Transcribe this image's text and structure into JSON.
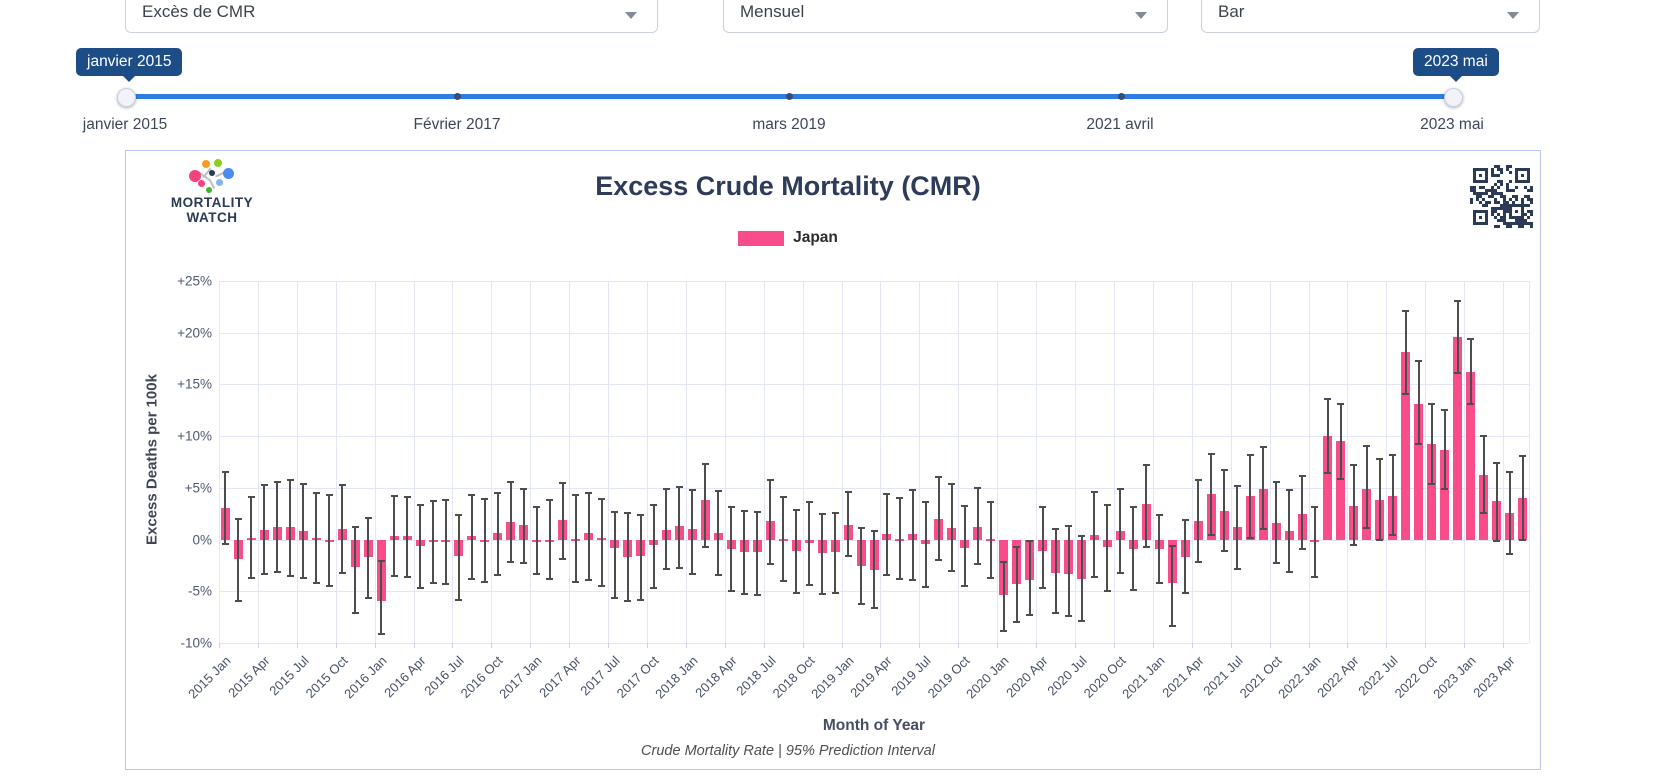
{
  "controls": {
    "metric": "Excès de CMR",
    "frequency": "Mensuel",
    "chart_type": "Bar"
  },
  "slider": {
    "start_badge": "janvier 2015",
    "end_badge": "2023 mai",
    "tick_labels": [
      "janvier 2015",
      "Février 2017",
      "mars 2019",
      "2021 avril",
      "2023 mai"
    ]
  },
  "brand": {
    "line1": "MORTALITY",
    "line2": "WATCH"
  },
  "colors": {
    "bar_pink": "#f84d8a",
    "badge_navy": "#1d4d86",
    "track_blue": "#2e7de2",
    "qr_navy": "#2b3a55"
  },
  "chart_data": {
    "type": "bar",
    "title": "Excess Crude Mortality (CMR)",
    "ylabel": "Excess Deaths per 100k",
    "xlabel": "Month of Year",
    "subtitle": "Crude Mortality Rate | 95% Prediction Interval",
    "legend": [
      {
        "label": "Japan",
        "color": "#f84d8a"
      }
    ],
    "ylim": [
      -10,
      25
    ],
    "ytick_step": 5,
    "ytick_labels": [
      "+25%",
      "+20%",
      "+15%",
      "+10%",
      "+5%",
      "0%",
      "-5%",
      "-10%"
    ],
    "grid": true,
    "xtick_every": 3,
    "x": [
      "2015 Jan",
      "2015 Feb",
      "2015 Mar",
      "2015 Apr",
      "2015 May",
      "2015 Jun",
      "2015 Jul",
      "2015 Aug",
      "2015 Sep",
      "2015 Oct",
      "2015 Nov",
      "2015 Dec",
      "2016 Jan",
      "2016 Feb",
      "2016 Mar",
      "2016 Apr",
      "2016 May",
      "2016 Jun",
      "2016 Jul",
      "2016 Aug",
      "2016 Sep",
      "2016 Oct",
      "2016 Nov",
      "2016 Dec",
      "2017 Jan",
      "2017 Feb",
      "2017 Mar",
      "2017 Apr",
      "2017 May",
      "2017 Jun",
      "2017 Jul",
      "2017 Aug",
      "2017 Sep",
      "2017 Oct",
      "2017 Nov",
      "2017 Dec",
      "2018 Jan",
      "2018 Feb",
      "2018 Mar",
      "2018 Apr",
      "2018 May",
      "2018 Jun",
      "2018 Jul",
      "2018 Aug",
      "2018 Sep",
      "2018 Oct",
      "2018 Nov",
      "2018 Dec",
      "2019 Jan",
      "2019 Feb",
      "2019 Mar",
      "2019 Apr",
      "2019 May",
      "2019 Jun",
      "2019 Jul",
      "2019 Aug",
      "2019 Sep",
      "2019 Oct",
      "2019 Nov",
      "2019 Dec",
      "2020 Jan",
      "2020 Feb",
      "2020 Mar",
      "2020 Apr",
      "2020 May",
      "2020 Jun",
      "2020 Jul",
      "2020 Aug",
      "2020 Sep",
      "2020 Oct",
      "2020 Nov",
      "2020 Dec",
      "2021 Jan",
      "2021 Feb",
      "2021 Mar",
      "2021 Apr",
      "2021 May",
      "2021 Jun",
      "2021 Jul",
      "2021 Aug",
      "2021 Sep",
      "2021 Oct",
      "2021 Nov",
      "2021 Dec",
      "2022 Jan",
      "2022 Feb",
      "2022 Mar",
      "2022 Apr",
      "2022 May",
      "2022 Jun",
      "2022 Jul",
      "2022 Aug",
      "2022 Sep",
      "2022 Oct",
      "2022 Nov",
      "2022 Dec",
      "2023 Jan",
      "2023 Feb",
      "2023 Mar",
      "2023 Apr",
      "2023 May"
    ],
    "series": [
      {
        "name": "Japan",
        "values": [
          3.1,
          -1.9,
          0.15,
          0.95,
          1.25,
          1.2,
          0.8,
          0.2,
          -0.1,
          1.0,
          -2.7,
          -1.7,
          -5.9,
          0.3,
          0.3,
          -0.6,
          -0.2,
          -0.1,
          -1.6,
          0.3,
          -0.05,
          0.6,
          1.7,
          1.4,
          0.0,
          -0.1,
          1.9,
          0.1,
          0.6,
          0.15,
          -0.85,
          -1.65,
          -1.6,
          -0.5,
          0.95,
          1.35,
          1.0,
          3.85,
          0.65,
          -0.9,
          -1.2,
          -1.2,
          1.75,
          0.1,
          -1.1,
          -0.35,
          -1.3,
          -1.2,
          1.4,
          -2.6,
          -2.9,
          0.5,
          0.05,
          0.5,
          -0.45,
          2.0,
          1.15,
          -0.8,
          1.25,
          0.1,
          -5.4,
          -4.3,
          -3.9,
          -1.1,
          -3.2,
          -3.35,
          -3.8,
          0.45,
          -0.75,
          0.85,
          -0.9,
          3.4,
          -0.9,
          -4.2,
          -1.7,
          1.8,
          4.4,
          2.8,
          1.2,
          4.2,
          4.9,
          1.65,
          0.85,
          2.5,
          -0.05,
          10.0,
          9.5,
          3.25,
          4.9,
          3.85,
          4.2,
          18.1,
          13.15,
          9.2,
          8.7,
          19.6,
          16.25,
          6.2,
          3.75,
          2.55,
          4.05
        ],
        "pi_low": [
          -0.5,
          -6.0,
          -3.8,
          -3.45,
          -3.25,
          -3.65,
          -3.8,
          -4.3,
          -4.6,
          -3.3,
          -7.2,
          -5.7,
          -9.2,
          -3.6,
          -3.7,
          -4.8,
          -4.3,
          -4.4,
          -5.9,
          -3.9,
          -4.2,
          -3.5,
          -2.3,
          -2.4,
          -3.4,
          -3.9,
          -2.0,
          -4.2,
          -4.0,
          -4.6,
          -5.7,
          -6.0,
          -5.9,
          -4.75,
          -2.9,
          -2.8,
          -3.4,
          -0.8,
          -3.5,
          -5.1,
          -5.4,
          -5.5,
          -2.5,
          -4.1,
          -5.3,
          -4.5,
          -5.4,
          -5.3,
          -1.7,
          -6.3,
          -6.7,
          -3.5,
          -3.9,
          -4.0,
          -4.65,
          -2.05,
          -3.1,
          -4.55,
          -2.5,
          -3.8,
          -8.9,
          -8.1,
          -7.4,
          -4.8,
          -7.2,
          -7.5,
          -8.0,
          -3.7,
          -5.1,
          -3.3,
          -5.0,
          -0.8,
          -4.3,
          -8.5,
          -5.3,
          -2.3,
          0.3,
          -1.2,
          -2.9,
          0.1,
          0.9,
          -2.4,
          -3.2,
          -1.0,
          -3.7,
          6.3,
          5.8,
          -0.6,
          1.0,
          -0.1,
          0.3,
          14.0,
          9.1,
          5.3,
          4.8,
          16.0,
          13.0,
          2.5,
          -0.2,
          -1.5,
          -0.1
        ],
        "pi_high": [
          6.6,
          2.1,
          4.2,
          5.35,
          5.7,
          5.9,
          5.45,
          4.6,
          4.4,
          5.4,
          1.3,
          2.2,
          -2.0,
          4.3,
          4.2,
          3.4,
          3.8,
          3.9,
          2.5,
          4.4,
          4.0,
          4.6,
          5.7,
          5.0,
          3.2,
          3.9,
          5.6,
          4.4,
          4.6,
          4.0,
          2.8,
          2.7,
          2.5,
          3.4,
          5.0,
          5.2,
          4.9,
          7.45,
          4.8,
          3.2,
          2.9,
          2.8,
          5.9,
          4.2,
          3.0,
          3.7,
          2.6,
          2.7,
          4.7,
          1.2,
          0.9,
          4.55,
          4.15,
          4.9,
          3.75,
          6.1,
          5.45,
          3.3,
          5.1,
          3.7,
          -2.1,
          -0.6,
          0.0,
          3.2,
          1.1,
          1.4,
          0.4,
          4.7,
          3.4,
          5.0,
          3.2,
          7.3,
          2.5,
          -0.5,
          2.0,
          5.9,
          8.4,
          6.8,
          5.3,
          8.3,
          9.0,
          5.7,
          4.9,
          6.2,
          3.2,
          13.7,
          13.2,
          7.3,
          9.1,
          7.9,
          8.3,
          22.2,
          17.4,
          13.2,
          12.6,
          23.2,
          19.5,
          10.1,
          7.5,
          6.6,
          8.2
        ]
      }
    ]
  }
}
